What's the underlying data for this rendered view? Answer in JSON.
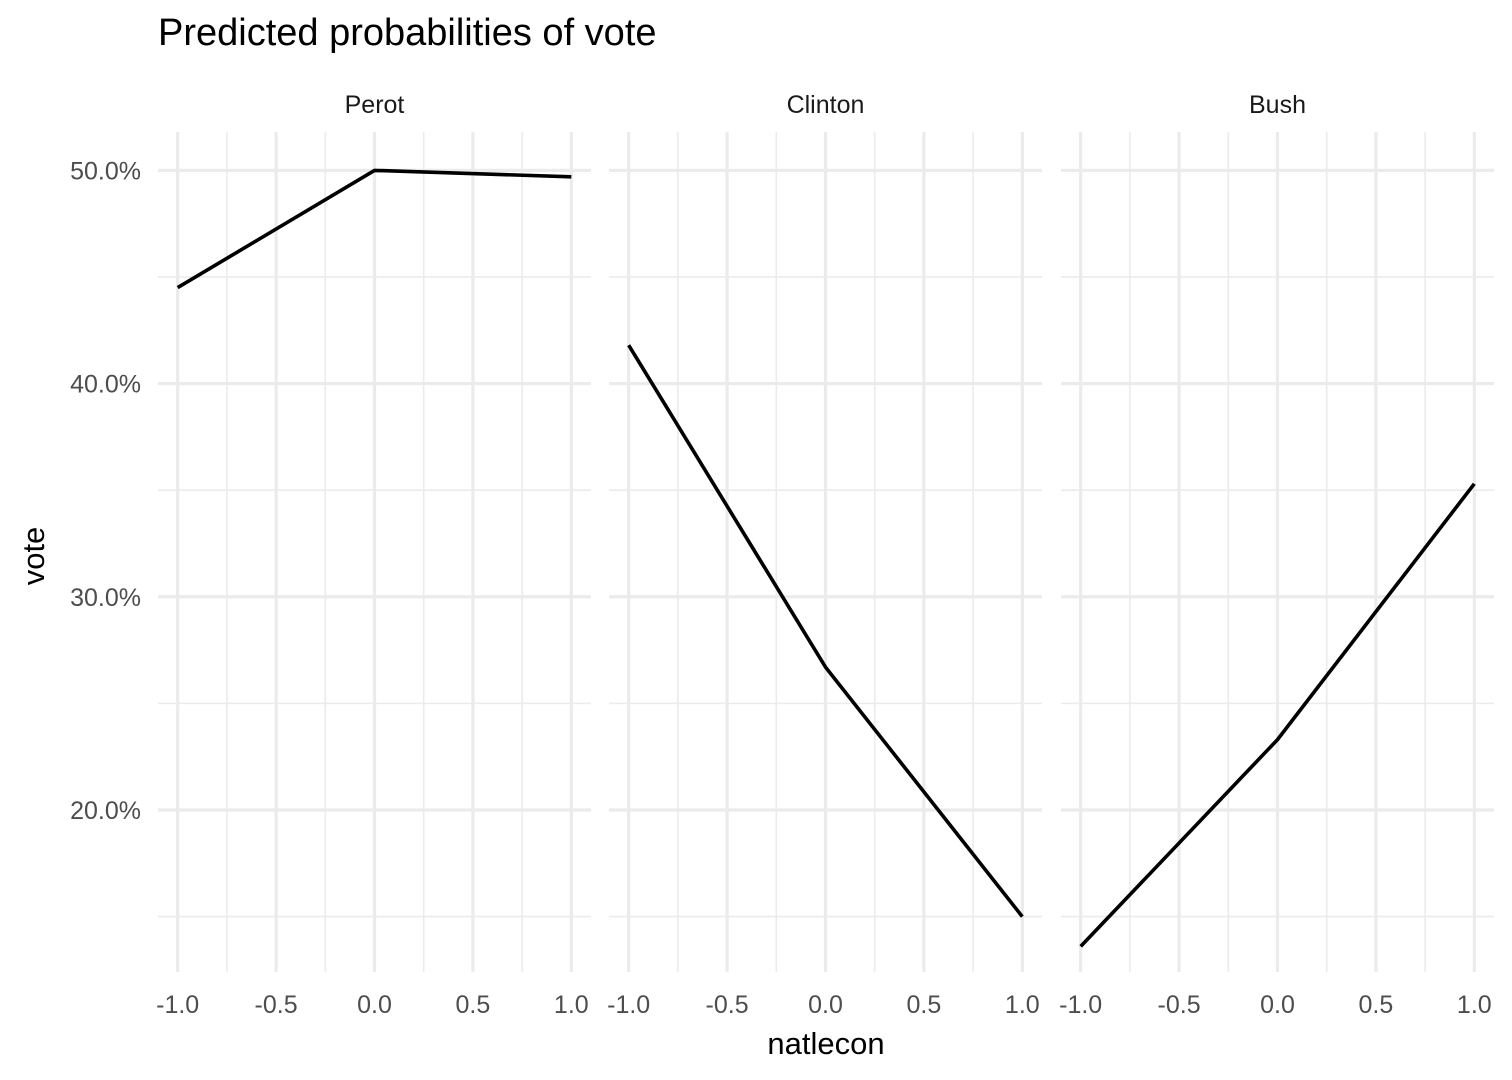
{
  "chart_data": {
    "type": "line",
    "title": "Predicted probabilities of vote",
    "xlabel": "natlecon",
    "ylabel": "vote",
    "x": [
      -1.0,
      0.0,
      1.0
    ],
    "x_tick_labels": [
      "-1.0",
      "-0.5",
      "0.0",
      "0.5",
      "1.0"
    ],
    "y_tick_labels": [
      "20.0%",
      "30.0%",
      "40.0%",
      "50.0%"
    ],
    "xlim": [
      -1.1,
      1.1
    ],
    "ylim": [
      12.4,
      51.8
    ],
    "grid": true,
    "legend": "none",
    "panels": [
      {
        "name": "Perot",
        "values": [
          44.5,
          50.0,
          49.7
        ]
      },
      {
        "name": "Clinton",
        "values": [
          41.8,
          26.7,
          15.0
        ]
      },
      {
        "name": "Bush",
        "values": [
          13.6,
          23.3,
          35.3
        ]
      }
    ]
  }
}
